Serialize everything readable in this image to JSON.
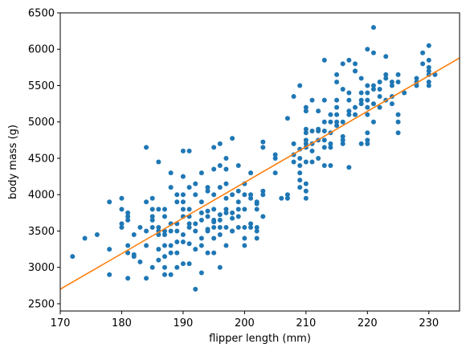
{
  "chart_data": {
    "type": "scatter",
    "title": "",
    "xlabel": "flipper length (mm)",
    "ylabel": "body mass (g)",
    "xlim": [
      170,
      235
    ],
    "ylim": [
      2400,
      6500
    ],
    "xticks": [
      170,
      180,
      190,
      200,
      210,
      220,
      230
    ],
    "yticks": [
      2500,
      3000,
      3500,
      4000,
      4500,
      5000,
      5500,
      6000,
      6500
    ],
    "xtick_labels": [
      "170",
      "180",
      "190",
      "200",
      "210",
      "220",
      "230"
    ],
    "ytick_labels": [
      "2500",
      "3000",
      "3500",
      "4000",
      "4500",
      "5000",
      "5500",
      "6000",
      "6500"
    ],
    "grid": false,
    "colors": {
      "points": "#1f77b4",
      "fit_line": "#ff7f0e"
    },
    "series": [
      {
        "type": "scatter",
        "points": [
          [
            172,
            3150
          ],
          [
            174,
            3400
          ],
          [
            176,
            3450
          ],
          [
            178,
            3250
          ],
          [
            178,
            2900
          ],
          [
            178,
            3900
          ],
          [
            180,
            3600
          ],
          [
            180,
            3550
          ],
          [
            180,
            3800
          ],
          [
            180,
            3950
          ],
          [
            181,
            3650
          ],
          [
            181,
            3700
          ],
          [
            181,
            3300
          ],
          [
            181,
            3200
          ],
          [
            181,
            3750
          ],
          [
            181,
            2850
          ],
          [
            182,
            3175
          ],
          [
            182,
            3150
          ],
          [
            182,
            3450
          ],
          [
            183,
            3550
          ],
          [
            183,
            3075
          ],
          [
            184,
            3300
          ],
          [
            184,
            2850
          ],
          [
            184,
            3900
          ],
          [
            184,
            3500
          ],
          [
            184,
            4650
          ],
          [
            185,
            3650
          ],
          [
            185,
            3700
          ],
          [
            185,
            3950
          ],
          [
            185,
            3000
          ],
          [
            185,
            3800
          ],
          [
            185,
            3550
          ],
          [
            186,
            3550
          ],
          [
            186,
            3800
          ],
          [
            186,
            3250
          ],
          [
            186,
            3450
          ],
          [
            186,
            4450
          ],
          [
            186,
            3100
          ],
          [
            186,
            3500
          ],
          [
            187,
            3450
          ],
          [
            187,
            3150
          ],
          [
            187,
            3500
          ],
          [
            187,
            3700
          ],
          [
            187,
            3800
          ],
          [
            187,
            3300
          ],
          [
            187,
            2900
          ],
          [
            187,
            3000
          ],
          [
            188,
            3300
          ],
          [
            188,
            4300
          ],
          [
            188,
            2900
          ],
          [
            188,
            3600
          ],
          [
            188,
            4100
          ],
          [
            188,
            3500
          ],
          [
            188,
            3200
          ],
          [
            189,
            3200
          ],
          [
            189,
            3500
          ],
          [
            189,
            3600
          ],
          [
            189,
            3350
          ],
          [
            189,
            3900
          ],
          [
            189,
            4000
          ],
          [
            189,
            3000
          ],
          [
            190,
            3450
          ],
          [
            190,
            3700
          ],
          [
            190,
            4250
          ],
          [
            190,
            4600
          ],
          [
            190,
            3050
          ],
          [
            190,
            3800
          ],
          [
            190,
            3350
          ],
          [
            190,
            3900
          ],
          [
            190,
            4000
          ],
          [
            191,
            3325
          ],
          [
            191,
            4600
          ],
          [
            191,
            3700
          ],
          [
            191,
            3600
          ],
          [
            191,
            4100
          ],
          [
            191,
            3050
          ],
          [
            191,
            3800
          ],
          [
            191,
            3550
          ],
          [
            192,
            2700
          ],
          [
            192,
            3500
          ],
          [
            192,
            3600
          ],
          [
            192,
            3250
          ],
          [
            192,
            4150
          ],
          [
            192,
            4000
          ],
          [
            193,
            2925
          ],
          [
            193,
            3400
          ],
          [
            193,
            3900
          ],
          [
            193,
            3750
          ],
          [
            193,
            3650
          ],
          [
            193,
            4300
          ],
          [
            193,
            3300
          ],
          [
            194,
            3775
          ],
          [
            194,
            3700
          ],
          [
            194,
            4050
          ],
          [
            194,
            3500
          ],
          [
            194,
            3525
          ],
          [
            194,
            4100
          ],
          [
            194,
            3200
          ],
          [
            195,
            3400
          ],
          [
            195,
            4000
          ],
          [
            195,
            4350
          ],
          [
            195,
            4650
          ],
          [
            195,
            3625
          ],
          [
            195,
            3200
          ],
          [
            195,
            3550
          ],
          [
            195,
            3650
          ],
          [
            195,
            3800
          ],
          [
            196,
            3650
          ],
          [
            196,
            4100
          ],
          [
            196,
            4400
          ],
          [
            196,
            3725
          ],
          [
            196,
            4700
          ],
          [
            196,
            3450
          ],
          [
            196,
            3550
          ],
          [
            196,
            3000
          ],
          [
            197,
            3300
          ],
          [
            197,
            4150
          ],
          [
            197,
            3800
          ],
          [
            197,
            4500
          ],
          [
            197,
            3950
          ],
          [
            197,
            3550
          ],
          [
            197,
            3750
          ],
          [
            197,
            4350
          ],
          [
            198,
            3675
          ],
          [
            198,
            3750
          ],
          [
            198,
            4000
          ],
          [
            198,
            3500
          ],
          [
            198,
            4775
          ],
          [
            198,
            3500
          ],
          [
            199,
            3800
          ],
          [
            199,
            4050
          ],
          [
            199,
            4400
          ],
          [
            199,
            3700
          ],
          [
            199,
            3550
          ],
          [
            199,
            3900
          ],
          [
            200,
            3550
          ],
          [
            200,
            3800
          ],
          [
            200,
            4000
          ],
          [
            200,
            3400
          ],
          [
            200,
            3300
          ],
          [
            200,
            4150
          ],
          [
            201,
            3600
          ],
          [
            201,
            4300
          ],
          [
            201,
            3950
          ],
          [
            201,
            4000
          ],
          [
            201,
            3550
          ],
          [
            202,
            3400
          ],
          [
            202,
            3875
          ],
          [
            202,
            3800
          ],
          [
            202,
            3500
          ],
          [
            202,
            3550
          ],
          [
            202,
            3900
          ],
          [
            203,
            4000
          ],
          [
            203,
            4725
          ],
          [
            203,
            4050
          ],
          [
            203,
            3700
          ],
          [
            203,
            4650
          ],
          [
            205,
            4500
          ],
          [
            205,
            4550
          ],
          [
            205,
            4300
          ],
          [
            206,
            3950
          ],
          [
            207,
            5050
          ],
          [
            207,
            4000
          ],
          [
            207,
            3950
          ],
          [
            208,
            4700
          ],
          [
            208,
            4550
          ],
          [
            208,
            5350
          ],
          [
            208,
            4450
          ],
          [
            209,
            4625
          ],
          [
            209,
            4300
          ],
          [
            209,
            5500
          ],
          [
            209,
            4500
          ],
          [
            209,
            4100
          ],
          [
            209,
            4200
          ],
          [
            209,
            4400
          ],
          [
            210,
            4900
          ],
          [
            210,
            3950
          ],
          [
            210,
            4150
          ],
          [
            210,
            4450
          ],
          [
            210,
            4650
          ],
          [
            210,
            5150
          ],
          [
            210,
            5200
          ],
          [
            210,
            4700
          ],
          [
            210,
            4050
          ],
          [
            210,
            4850
          ],
          [
            210,
            4750
          ],
          [
            211,
            4700
          ],
          [
            211,
            4450
          ],
          [
            211,
            4875
          ],
          [
            211,
            5300
          ],
          [
            211,
            4600
          ],
          [
            212,
            4900
          ],
          [
            212,
            4875
          ],
          [
            212,
            4750
          ],
          [
            212,
            5150
          ],
          [
            212,
            4500
          ],
          [
            213,
            5850
          ],
          [
            213,
            4750
          ],
          [
            213,
            4400
          ],
          [
            213,
            5300
          ],
          [
            213,
            4650
          ],
          [
            213,
            5000
          ],
          [
            213,
            4875
          ],
          [
            214,
            4850
          ],
          [
            214,
            5000
          ],
          [
            214,
            4700
          ],
          [
            214,
            4650
          ],
          [
            214,
            4400
          ],
          [
            214,
            5100
          ],
          [
            215,
            5000
          ],
          [
            215,
            5550
          ],
          [
            215,
            5650
          ],
          [
            215,
            5100
          ],
          [
            215,
            5300
          ],
          [
            215,
            5200
          ],
          [
            215,
            4950
          ],
          [
            216,
            5000
          ],
          [
            216,
            4800
          ],
          [
            216,
            4700
          ],
          [
            216,
            4750
          ],
          [
            216,
            5450
          ],
          [
            216,
            5800
          ],
          [
            217,
            4375
          ],
          [
            217,
            5300
          ],
          [
            217,
            5850
          ],
          [
            217,
            5150
          ],
          [
            217,
            5400
          ],
          [
            217,
            5100
          ],
          [
            218,
            5700
          ],
          [
            218,
            5700
          ],
          [
            218,
            5800
          ],
          [
            218,
            5200
          ],
          [
            218,
            5100
          ],
          [
            219,
            5600
          ],
          [
            219,
            5250
          ],
          [
            219,
            5300
          ],
          [
            219,
            4700
          ],
          [
            219,
            5400
          ],
          [
            220,
            5100
          ],
          [
            220,
            4850
          ],
          [
            220,
            4700
          ],
          [
            220,
            6000
          ],
          [
            220,
            5500
          ],
          [
            220,
            5200
          ],
          [
            220,
            5300
          ],
          [
            220,
            5400
          ],
          [
            220,
            4750
          ],
          [
            221,
            6300
          ],
          [
            221,
            5950
          ],
          [
            221,
            5450
          ],
          [
            221,
            5000
          ],
          [
            221,
            5500
          ],
          [
            221,
            5250
          ],
          [
            222,
            5200
          ],
          [
            222,
            5550
          ],
          [
            222,
            5450
          ],
          [
            222,
            5350
          ],
          [
            223,
            5650
          ],
          [
            223,
            5300
          ],
          [
            223,
            5600
          ],
          [
            223,
            5900
          ],
          [
            224,
            5350
          ],
          [
            224,
            5500
          ],
          [
            224,
            5250
          ],
          [
            224,
            5550
          ],
          [
            225,
            5100
          ],
          [
            225,
            4850
          ],
          [
            225,
            5000
          ],
          [
            225,
            5650
          ],
          [
            225,
            5550
          ],
          [
            226,
            5400
          ],
          [
            228,
            5500
          ],
          [
            228,
            5550
          ],
          [
            228,
            5600
          ],
          [
            229,
            5950
          ],
          [
            229,
            5800
          ],
          [
            230,
            5850
          ],
          [
            230,
            5750
          ],
          [
            230,
            5650
          ],
          [
            230,
            5550
          ],
          [
            230,
            5500
          ],
          [
            230,
            5700
          ],
          [
            230,
            6050
          ],
          [
            231,
            5650
          ]
        ]
      },
      {
        "type": "line",
        "points": [
          [
            170,
            2700
          ],
          [
            235,
            5880
          ]
        ]
      }
    ]
  }
}
